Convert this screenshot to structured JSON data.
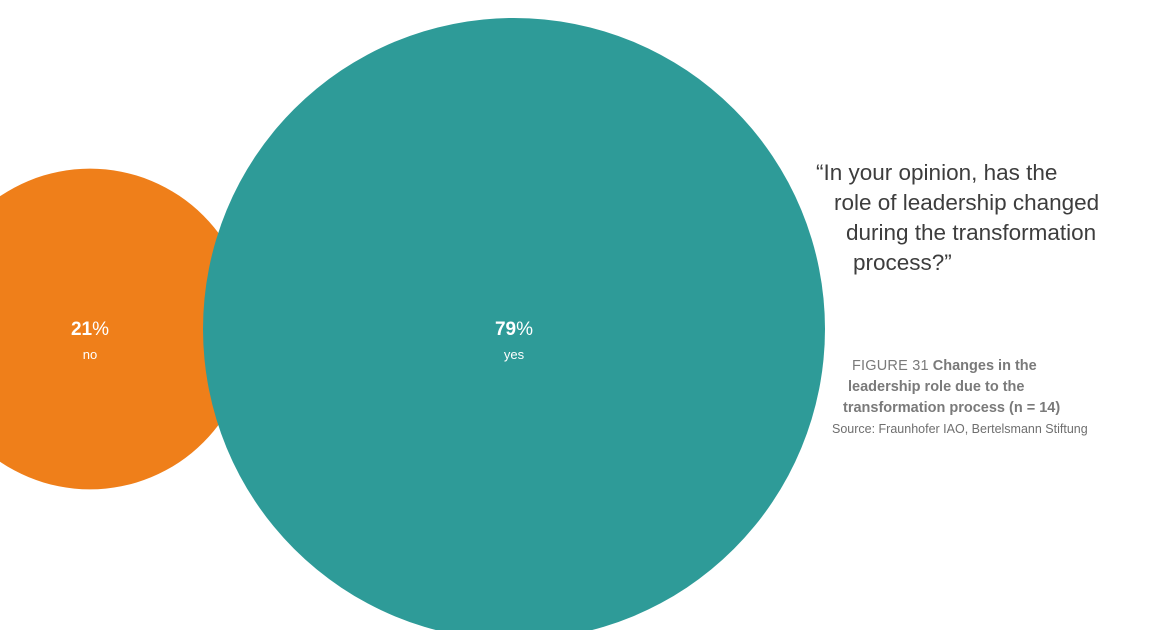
{
  "question": {
    "line1": "“In your opinion, has the",
    "line2": "role of leadership changed",
    "line3": "during the transformation",
    "line4": "process?”"
  },
  "figure": {
    "label": "FIGURE 31",
    "title_line1": "Changes in the",
    "title_line2": "leadership role due to the",
    "title_line3": "transformation process (n = 14)",
    "source": "Source: Fraunhofer IAO, Bertelsmann Stiftung"
  },
  "colors": {
    "yes": "#2e9b98",
    "no": "#ef7f1a"
  },
  "chart_data": {
    "type": "bubble",
    "title": "",
    "categories": [
      "no",
      "yes"
    ],
    "values": [
      21,
      79
    ],
    "unit": "%",
    "series": [
      {
        "category": "no",
        "value": 21,
        "color": "#ef7f1a"
      },
      {
        "category": "yes",
        "value": 79,
        "color": "#2e9b98"
      }
    ]
  }
}
